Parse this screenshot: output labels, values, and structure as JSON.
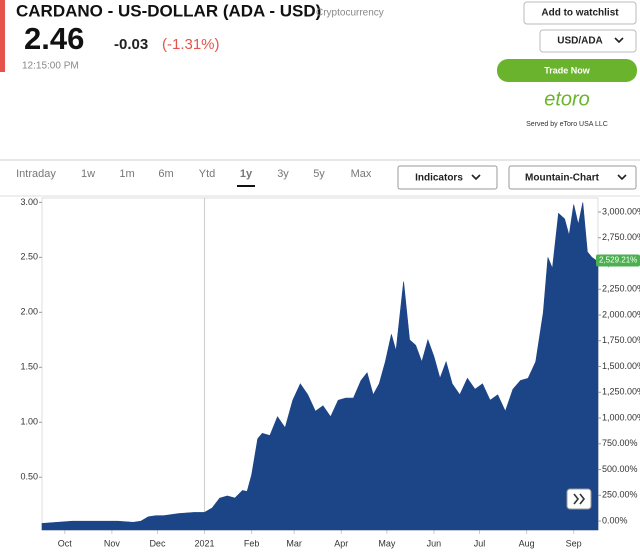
{
  "header": {
    "title": "CARDANO - US-DOLLAR (ADA - USD)",
    "category": "Cryptocurrency",
    "price": "2.46",
    "change": "-0.03",
    "change_percent": "(-1.31%)",
    "time": "12:15:00 PM"
  },
  "actions": {
    "watchlist": "Add to watchlist",
    "pair": "USD/ADA",
    "trade": "Trade Now",
    "brand": "etoro",
    "served_by": "Served by eToro USA LLC"
  },
  "tabs": [
    "Intraday",
    "1w",
    "1m",
    "6m",
    "Ytd",
    "1y",
    "3y",
    "5y",
    "Max"
  ],
  "active_tab": 5,
  "menus": [
    "Indicators",
    "Mountain-Chart"
  ],
  "chart_data": {
    "type": "area",
    "color": "#1c4587",
    "x": [
      0,
      10,
      20,
      30,
      40,
      50,
      60,
      65,
      70,
      75,
      80,
      90,
      100,
      107,
      112,
      117,
      122,
      127,
      132,
      135,
      138,
      142,
      145,
      150,
      155,
      160,
      165,
      170,
      175,
      180,
      185,
      190,
      195,
      200,
      205,
      210,
      214,
      218,
      222,
      226,
      230,
      233,
      238,
      242,
      246,
      250,
      254,
      258,
      262,
      266,
      270,
      275,
      280,
      285,
      290,
      295,
      300,
      305,
      310,
      315,
      320,
      325,
      330,
      333,
      336,
      340,
      344,
      347,
      350,
      353,
      356,
      359,
      362,
      366
    ],
    "values": [
      0.08,
      0.09,
      0.1,
      0.1,
      0.1,
      0.1,
      0.09,
      0.1,
      0.14,
      0.15,
      0.15,
      0.17,
      0.18,
      0.18,
      0.22,
      0.31,
      0.33,
      0.31,
      0.38,
      0.37,
      0.52,
      0.85,
      0.9,
      0.88,
      1.05,
      0.95,
      1.2,
      1.35,
      1.25,
      1.1,
      1.15,
      1.05,
      1.2,
      1.22,
      1.22,
      1.38,
      1.45,
      1.25,
      1.35,
      1.55,
      1.8,
      1.65,
      2.28,
      1.75,
      1.7,
      1.55,
      1.75,
      1.6,
      1.4,
      1.55,
      1.35,
      1.25,
      1.4,
      1.3,
      1.35,
      1.2,
      1.25,
      1.1,
      1.3,
      1.38,
      1.4,
      1.55,
      2.0,
      2.5,
      2.4,
      2.9,
      2.85,
      2.7,
      2.98,
      2.8,
      3.0,
      2.55,
      2.5,
      2.46
    ],
    "xlim": [
      0,
      366
    ],
    "xticks": [
      {
        "value": 15,
        "label": "Oct"
      },
      {
        "value": 46,
        "label": "Nov"
      },
      {
        "value": 76,
        "label": "Dec"
      },
      {
        "value": 107,
        "label": "2021"
      },
      {
        "value": 138,
        "label": "Feb"
      },
      {
        "value": 166,
        "label": "Mar"
      },
      {
        "value": 197,
        "label": "Apr"
      },
      {
        "value": 227,
        "label": "May"
      },
      {
        "value": 258,
        "label": "Jun"
      },
      {
        "value": 288,
        "label": "Jul"
      },
      {
        "value": 319,
        "label": "Aug"
      },
      {
        "value": 350,
        "label": "Sep"
      }
    ],
    "ylim": [
      0.02,
      3.04
    ],
    "yticks": [
      {
        "value": 0.5,
        "label": "0.50"
      },
      {
        "value": 1,
        "label": "1.00"
      },
      {
        "value": 1.5,
        "label": "1.50"
      },
      {
        "value": 2,
        "label": "2.00"
      },
      {
        "value": 2.5,
        "label": "2.50"
      },
      {
        "value": 3,
        "label": "3.00"
      }
    ],
    "y2lim": [
      -87,
      3136
    ],
    "y2ticks": [
      {
        "value": 0,
        "label": "0.00%"
      },
      {
        "value": 250,
        "label": "250.00%"
      },
      {
        "value": 500,
        "label": "500.00%"
      },
      {
        "value": 750,
        "label": "750.00%"
      },
      {
        "value": 1000,
        "label": "1,000.00%"
      },
      {
        "value": 1250,
        "label": "1,250.00%"
      },
      {
        "value": 1500,
        "label": "1,500.00%"
      },
      {
        "value": 1750,
        "label": "1,750.00%"
      },
      {
        "value": 2000,
        "label": "2,000.00%"
      },
      {
        "value": 2250,
        "label": "2,250.00%"
      },
      {
        "value": 2500,
        "label": "2,500.00%"
      },
      {
        "value": 2750,
        "label": "2,750.00%"
      },
      {
        "value": 3000,
        "label": "3,000.00%"
      }
    ],
    "y2_marker": {
      "value": 2529.21,
      "label": "2,529.21%"
    }
  }
}
